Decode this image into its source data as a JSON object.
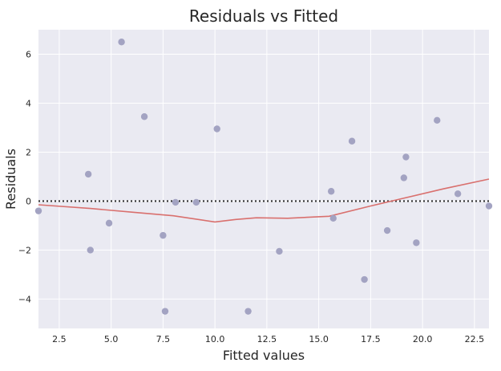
{
  "chart_data": {
    "type": "scatter",
    "title": "Residuals vs Fitted",
    "xlabel": "Fitted values",
    "ylabel": "Residuals",
    "xlim": [
      1.5,
      23.2
    ],
    "ylim": [
      -5.2,
      7.0
    ],
    "x_ticks": [
      2.5,
      5.0,
      7.5,
      10.0,
      12.5,
      15.0,
      17.5,
      20.0,
      22.5
    ],
    "x_tick_labels": [
      "2.5",
      "5.0",
      "7.5",
      "10.0",
      "12.5",
      "15.0",
      "17.5",
      "20.0",
      "22.5"
    ],
    "y_ticks": [
      -4,
      -2,
      0,
      2,
      4,
      6
    ],
    "y_tick_labels": [
      "−4",
      "−2",
      "0",
      "2",
      "4",
      "6"
    ],
    "grid": true,
    "background_color": "#eaeaf2",
    "grid_color": "#ffffff",
    "point_color": "#a3a3c2",
    "line_color": "#d9706e",
    "reference_line_color": "#333333",
    "points": [
      {
        "x": 1.5,
        "y": -0.4
      },
      {
        "x": 3.9,
        "y": 1.1
      },
      {
        "x": 4.0,
        "y": -2.0
      },
      {
        "x": 4.9,
        "y": -0.9
      },
      {
        "x": 5.5,
        "y": 6.5
      },
      {
        "x": 6.6,
        "y": 3.45
      },
      {
        "x": 7.5,
        "y": -1.4
      },
      {
        "x": 7.6,
        "y": -4.5
      },
      {
        "x": 8.1,
        "y": -0.05
      },
      {
        "x": 9.1,
        "y": -0.05
      },
      {
        "x": 10.1,
        "y": 2.95
      },
      {
        "x": 11.6,
        "y": -4.5
      },
      {
        "x": 13.1,
        "y": -2.05
      },
      {
        "x": 15.6,
        "y": 0.4
      },
      {
        "x": 15.7,
        "y": -0.7
      },
      {
        "x": 16.6,
        "y": 2.45
      },
      {
        "x": 17.2,
        "y": -3.2
      },
      {
        "x": 18.3,
        "y": -1.2
      },
      {
        "x": 19.1,
        "y": 0.95
      },
      {
        "x": 19.2,
        "y": 1.8
      },
      {
        "x": 19.7,
        "y": -1.7
      },
      {
        "x": 20.7,
        "y": 3.3
      },
      {
        "x": 21.7,
        "y": 0.3
      },
      {
        "x": 23.2,
        "y": -0.2
      }
    ],
    "lowess_line": [
      {
        "x": 1.5,
        "y": -0.15
      },
      {
        "x": 4.0,
        "y": -0.3
      },
      {
        "x": 6.0,
        "y": -0.45
      },
      {
        "x": 8.0,
        "y": -0.6
      },
      {
        "x": 10.0,
        "y": -0.85
      },
      {
        "x": 11.0,
        "y": -0.75
      },
      {
        "x": 12.0,
        "y": -0.68
      },
      {
        "x": 13.5,
        "y": -0.7
      },
      {
        "x": 15.5,
        "y": -0.62
      },
      {
        "x": 17.5,
        "y": -0.2
      },
      {
        "x": 19.0,
        "y": 0.1
      },
      {
        "x": 21.0,
        "y": 0.5
      },
      {
        "x": 23.2,
        "y": 0.9
      }
    ],
    "reference_line_y": 0
  }
}
